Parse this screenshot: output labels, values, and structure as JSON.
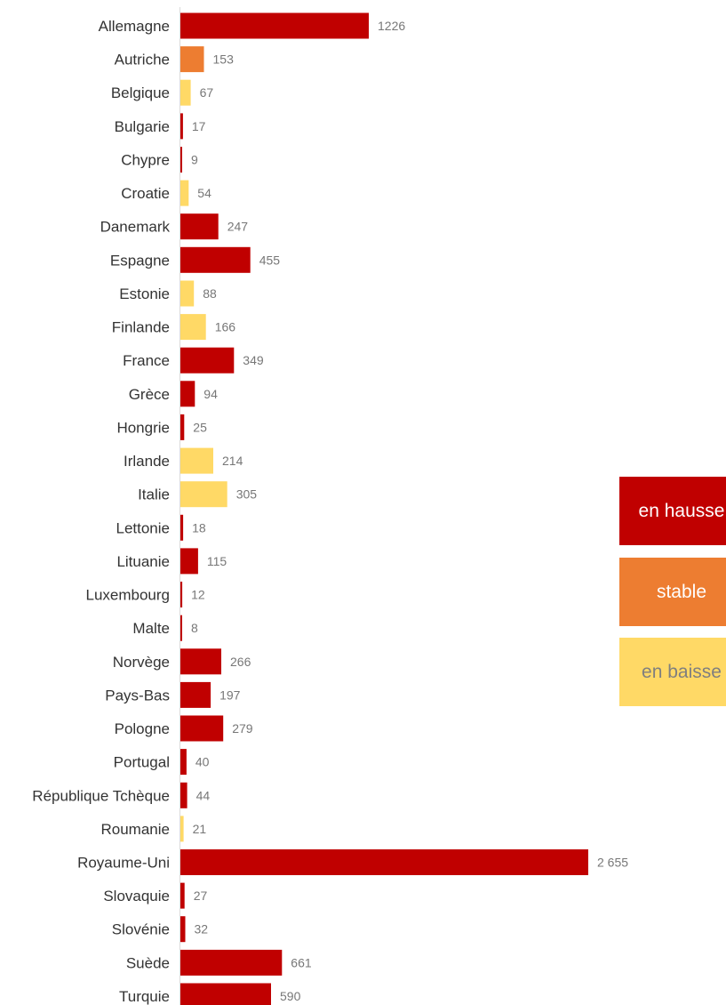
{
  "colors": {
    "en_hausse": "#c00000",
    "stable": "#ed7d31",
    "en_baisse": "#ffd966",
    "category_label": "#333333",
    "value_label": "#777777",
    "axis_line": "#d9d9d9"
  },
  "legend": {
    "up_label": "en hausse",
    "stable_label": "stable",
    "down_label": "en baisse"
  },
  "chart_data": {
    "type": "bar",
    "orientation": "horizontal",
    "categories": [
      "Allemagne",
      "Autriche",
      "Belgique",
      "Bulgarie",
      "Chypre",
      "Croatie",
      "Danemark",
      "Espagne",
      "Estonie",
      "Finlande",
      "France",
      "Grèce",
      "Hongrie",
      "Irlande",
      "Italie",
      "Lettonie",
      "Lituanie",
      "Luxembourg",
      "Malte",
      "Norvège",
      "Pays-Bas",
      "Pologne",
      "Portugal",
      "République Tchèque",
      "Roumanie",
      "Royaume-Uni",
      "Slovaquie",
      "Slovénie",
      "Suède",
      "Turquie"
    ],
    "values": [
      1226,
      153,
      67,
      17,
      9,
      54,
      247,
      455,
      88,
      166,
      349,
      94,
      25,
      214,
      305,
      18,
      115,
      12,
      8,
      266,
      197,
      279,
      40,
      44,
      21,
      2655,
      27,
      32,
      661,
      590
    ],
    "value_labels": [
      "1226",
      "153",
      "67",
      "17",
      "9",
      "54",
      "247",
      "455",
      "88",
      "166",
      "349",
      "94",
      "25",
      "214",
      "305",
      "18",
      "115",
      "12",
      "8",
      "266",
      "197",
      "279",
      "40",
      "44",
      "21",
      "2 655",
      "27",
      "32",
      "661",
      "590"
    ],
    "trend": [
      "en hausse",
      "stable",
      "en baisse",
      "en hausse",
      "en hausse",
      "en baisse",
      "en hausse",
      "en hausse",
      "en baisse",
      "en baisse",
      "en hausse",
      "en hausse",
      "en hausse",
      "en baisse",
      "en baisse",
      "en hausse",
      "en hausse",
      "en hausse",
      "en hausse",
      "en hausse",
      "en hausse",
      "en hausse",
      "en hausse",
      "en hausse",
      "en baisse",
      "en hausse",
      "en hausse",
      "en hausse",
      "en hausse",
      "en hausse"
    ],
    "xlim": [
      0,
      2655
    ],
    "title": "",
    "xlabel": "",
    "ylabel": "",
    "grid": false,
    "legend_position": "right"
  }
}
